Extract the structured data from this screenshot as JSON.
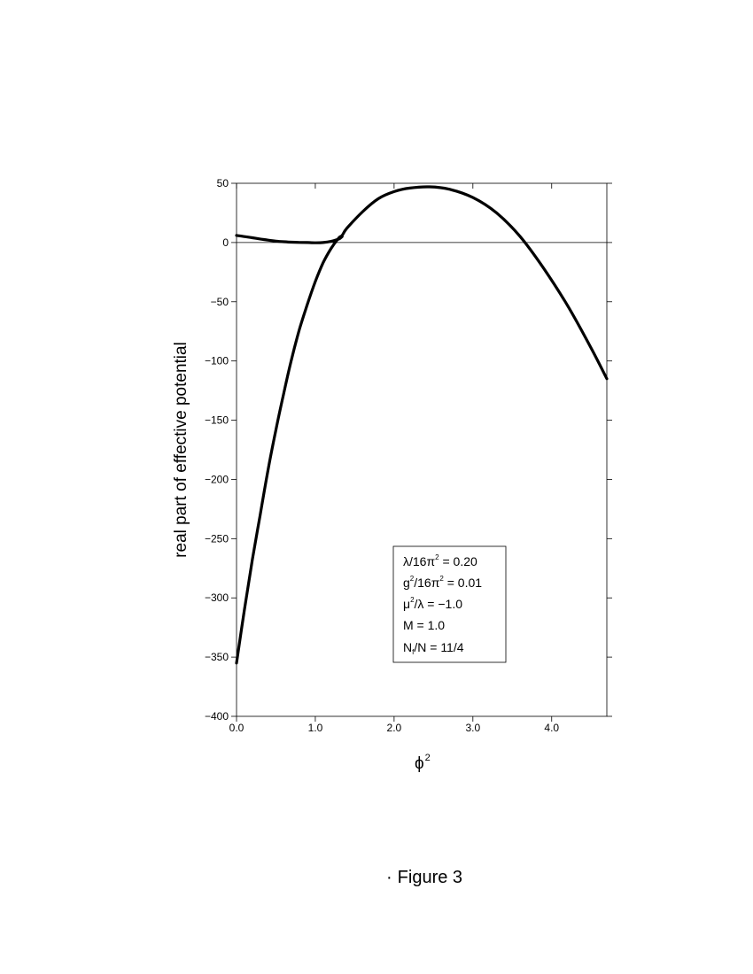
{
  "chart_data": {
    "type": "line",
    "xlabel": "ϕ",
    "xlabel_sup": "2",
    "ylabel": "real part of effective potential",
    "xlim": [
      0.0,
      4.7
    ],
    "ylim": [
      -400,
      50
    ],
    "xticks": [
      0.0,
      1.0,
      2.0,
      3.0,
      4.0
    ],
    "xtick_labels": [
      "0.0",
      "1.0",
      "2.0",
      "3.0",
      "4.0"
    ],
    "yticks": [
      50,
      0,
      -50,
      -100,
      -150,
      -200,
      -250,
      -300,
      -350,
      -400
    ],
    "ytick_labels": [
      "50",
      "0",
      "−50",
      "−100",
      "−150",
      "−200",
      "−250",
      "−300",
      "−350",
      "−400"
    ],
    "zero_line": true,
    "grid": false,
    "series": [
      {
        "values_x": [
          0.0,
          0.1,
          0.2,
          0.3,
          0.4,
          0.5,
          0.6,
          0.7,
          0.8,
          0.9,
          1.0,
          1.1,
          1.2,
          1.3,
          1.34
        ],
        "values_y": [
          6,
          5,
          4,
          3,
          2,
          1.2,
          0.7,
          0.3,
          0.1,
          0,
          -0.2,
          0,
          1,
          3,
          5
        ]
      },
      {
        "values_x": [
          0.0,
          0.1,
          0.2,
          0.3,
          0.4,
          0.5,
          0.6,
          0.7,
          0.8,
          0.9,
          1.0,
          1.1,
          1.2,
          1.3,
          1.34,
          1.4,
          1.6,
          1.8,
          2.0,
          2.2,
          2.45,
          2.7,
          3.0,
          3.3,
          3.6,
          3.9,
          4.2,
          4.5,
          4.7
        ],
        "values_y": [
          -355,
          -310,
          -268,
          -230,
          -192,
          -158,
          -127,
          -98,
          -73,
          -52,
          -33,
          -17,
          -5,
          4,
          6,
          12,
          26,
          37,
          43,
          46,
          47,
          45,
          38,
          25,
          5,
          -22,
          -53,
          -89,
          -115
        ]
      }
    ],
    "legend": {
      "placement": "inside lower center",
      "entries": [
        {
          "main": "λ/16π",
          "sup": "2",
          "rest": " = 0.20"
        },
        {
          "pre": "g",
          "pre_sup": "2",
          "main": "/16π",
          "sup": "2",
          "rest": " = 0.01"
        },
        {
          "pre": "μ",
          "pre_sup": "2",
          "main": "/λ",
          "rest": " = −1.0"
        },
        {
          "main": "M = 1.0"
        },
        {
          "pre": "N",
          "pre_sub": "f",
          "main": "/N = 11/4"
        }
      ]
    }
  },
  "caption": {
    "bullet": "·",
    "text": "Figure  3"
  }
}
